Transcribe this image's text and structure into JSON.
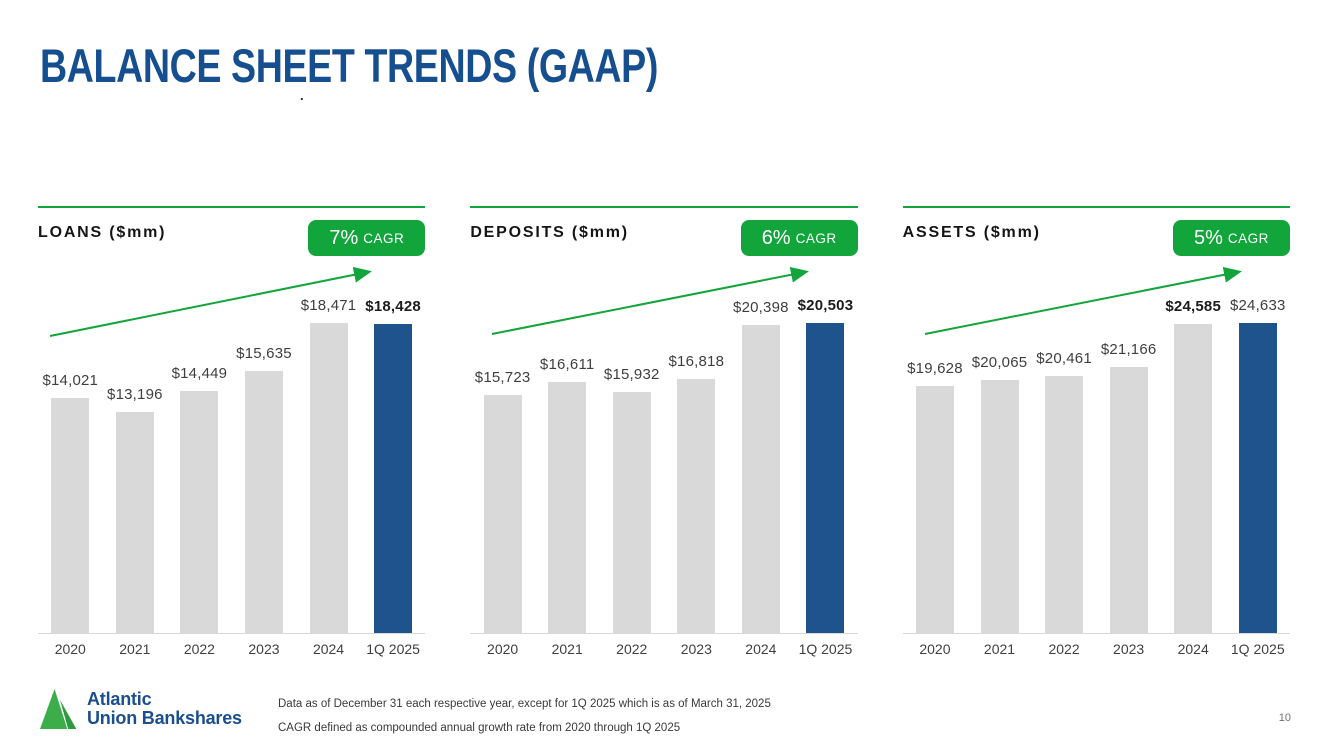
{
  "slide": {
    "title": "BALANCE SHEET TRENDS (GAAP)",
    "stray_mark": ".",
    "page_number": "10"
  },
  "colors": {
    "title_blue": "#164F90",
    "highlight_bar_blue": "#1F538C",
    "bar_gray": "#D9D9D9",
    "accent_green": "#12A53C",
    "logo_green": "#3BAD49",
    "logo_green_dark": "#2C9B3F",
    "logo_blue": "#1B4E8E"
  },
  "logo": {
    "line1": "Atlantic",
    "line2": "Union Bankshares"
  },
  "footnotes": [
    "Data as of December 31 each respective year, except for 1Q 2025 which is as of March 31, 2025",
    "CAGR defined as compounded annual growth rate from 2020 through 1Q 2025"
  ],
  "chart_data": [
    {
      "type": "bar",
      "title": "LOANS ($mm)",
      "cagr_value": "7%",
      "cagr_suffix": "CAGR",
      "categories": [
        "2020",
        "2021",
        "2022",
        "2023",
        "2024",
        "1Q 2025"
      ],
      "values": [
        14021,
        13196,
        14449,
        15635,
        18471,
        18428
      ],
      "labels": [
        "$14,021",
        "$13,196",
        "$14,449",
        "$15,635",
        "$18,471",
        "$18,428"
      ],
      "label_bold": [
        false,
        false,
        false,
        false,
        false,
        true
      ],
      "highlight_index": 5,
      "ylim": [
        0,
        18471
      ],
      "grid": false,
      "legend": "none",
      "annotation": "green upward trend arrow"
    },
    {
      "type": "bar",
      "title": "DEPOSITS ($mm)",
      "cagr_value": "6%",
      "cagr_suffix": "CAGR",
      "categories": [
        "2020",
        "2021",
        "2022",
        "2023",
        "2024",
        "1Q 2025"
      ],
      "values": [
        15723,
        16611,
        15932,
        16818,
        20398,
        20503
      ],
      "labels": [
        "$15,723",
        "$16,611",
        "$15,932",
        "$16,818",
        "$20,398",
        "$20,503"
      ],
      "label_bold": [
        false,
        false,
        false,
        false,
        false,
        true
      ],
      "highlight_index": 5,
      "ylim": [
        0,
        20503
      ],
      "grid": false,
      "legend": "none",
      "annotation": "green upward trend arrow"
    },
    {
      "type": "bar",
      "title": "ASSETS ($mm)",
      "cagr_value": "5%",
      "cagr_suffix": "CAGR",
      "categories": [
        "2020",
        "2021",
        "2022",
        "2023",
        "2024",
        "1Q 2025"
      ],
      "values": [
        19628,
        20065,
        20461,
        21166,
        24585,
        24633
      ],
      "labels": [
        "$19,628",
        "$20,065",
        "$20,461",
        "$21,166",
        "$24,585",
        "$24,633"
      ],
      "label_bold": [
        false,
        false,
        false,
        false,
        true,
        false
      ],
      "highlight_index": 5,
      "ylim": [
        0,
        24633
      ],
      "grid": false,
      "legend": "none",
      "annotation": "green upward trend arrow"
    }
  ]
}
